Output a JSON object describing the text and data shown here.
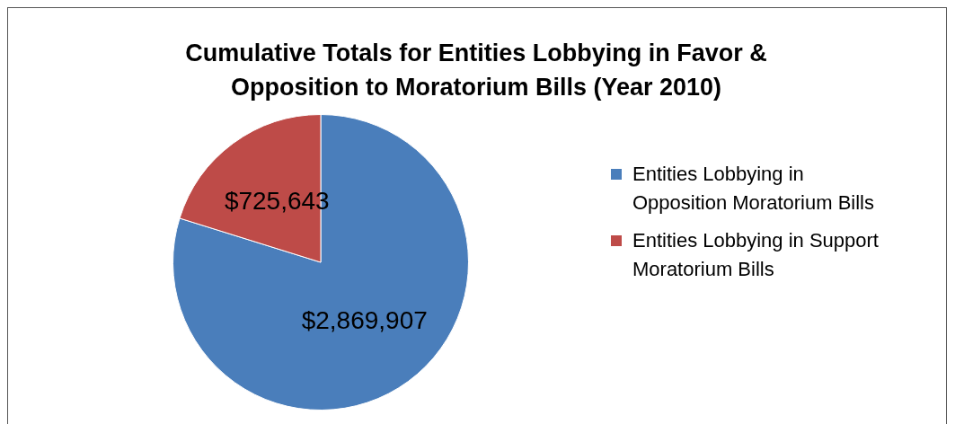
{
  "chart_data": {
    "type": "pie",
    "title": "Cumulative Totals for Entities Lobbying in Favor & Opposition to Moratorium Bills (Year 2010)",
    "categories": [
      "Entities Lobbying in Opposition Moratorium Bills",
      "Entities Lobbying in Support Moratorium Bills"
    ],
    "values": [
      2869907,
      725643
    ],
    "colors": [
      "#4a7ebb",
      "#be4b48"
    ],
    "value_labels": [
      "$2,869,907",
      "$725,643"
    ],
    "legend": "right"
  }
}
